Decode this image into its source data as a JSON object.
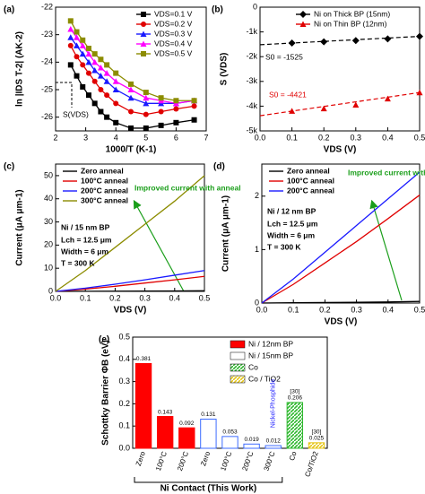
{
  "chart_data": [
    {
      "type": "line",
      "panel_label": "(a)",
      "xlabel": "1000/T (K-1)",
      "ylabel": "ln |IDS T-2| (AK-2)",
      "x": [
        2.5,
        2.7,
        2.9,
        3.1,
        3.3,
        3.5,
        3.7,
        4.0,
        4.5,
        5.0,
        5.5,
        6.0,
        6.6
      ],
      "series": [
        {
          "name": "VDS=0.1 V",
          "color": "#000000",
          "marker": "square",
          "values": [
            -24.1,
            -24.5,
            -24.9,
            -25.2,
            -25.5,
            -25.8,
            -26.0,
            -26.2,
            -26.4,
            -26.4,
            -26.3,
            -26.2,
            -26.1
          ]
        },
        {
          "name": "VDS=0.2 V",
          "color": "#e00000",
          "marker": "circle",
          "values": [
            -23.4,
            -23.8,
            -24.1,
            -24.4,
            -24.7,
            -25.0,
            -25.2,
            -25.5,
            -25.8,
            -25.9,
            -25.8,
            -25.7,
            -25.6
          ]
        },
        {
          "name": "VDS=0.3 V",
          "color": "#1a1aff",
          "marker": "triangle",
          "values": [
            -23.1,
            -23.4,
            -23.7,
            -24.0,
            -24.3,
            -24.5,
            -24.7,
            -25.0,
            -25.3,
            -25.5,
            -25.5,
            -25.5,
            -25.4
          ]
        },
        {
          "name": "VDS=0.4 V",
          "color": "#ff00ff",
          "marker": "triangle",
          "values": [
            -22.8,
            -23.1,
            -23.4,
            -23.7,
            -24.0,
            -24.2,
            -24.4,
            -24.7,
            -25.0,
            -25.3,
            -25.4,
            -25.5,
            -25.4
          ]
        },
        {
          "name": "VDS=0.5 V",
          "color": "#8c8c00",
          "marker": "square",
          "values": [
            -22.5,
            -22.9,
            -23.2,
            -23.5,
            -23.7,
            -23.9,
            -24.1,
            -24.4,
            -24.8,
            -25.1,
            -25.3,
            -25.4,
            -25.4
          ]
        }
      ],
      "xlim": [
        2,
        7
      ],
      "xticks": [
        2,
        3,
        4,
        5,
        6,
        7
      ],
      "ylim": [
        -26.5,
        -22
      ],
      "yticks": [
        -26,
        -25,
        -24,
        -23,
        -22
      ],
      "legend": "upper right",
      "annotations": [
        "S(VDS)"
      ]
    },
    {
      "type": "scatter",
      "panel_label": "(b)",
      "xlabel": "VDS (V)",
      "ylabel": "S (VDS)",
      "x": [
        0.1,
        0.2,
        0.3,
        0.4,
        0.5
      ],
      "series": [
        {
          "name": "Ni on Thick BP (15nm)",
          "color": "#000000",
          "marker": "diamond",
          "values": [
            -1450,
            -1400,
            -1350,
            -1280,
            -1180
          ]
        },
        {
          "name": "Ni on Thin BP (12nm)",
          "color": "#e00000",
          "marker": "triangle",
          "values": [
            -4200,
            -4100,
            -3950,
            -3700,
            -3450
          ]
        }
      ],
      "xlim": [
        0,
        0.5
      ],
      "xticks": [
        {
          "value": 0,
          "label": "0.0"
        },
        0.1,
        0.2,
        0.3,
        0.4,
        0.5
      ],
      "ylim": [
        -5000,
        0
      ],
      "yticks": [
        {
          "value": -5000,
          "label": "-5k"
        },
        {
          "value": -4000,
          "label": "-4k"
        },
        {
          "value": -3000,
          "label": "-3k"
        },
        {
          "value": -2000,
          "label": "-2k"
        },
        {
          "value": -1000,
          "label": "-1k"
        },
        0
      ],
      "legend": "upper right",
      "annotations": [
        "S0 = -1525",
        "S0 = -4421"
      ]
    },
    {
      "type": "line",
      "panel_label": "(c)",
      "xlabel": "VDS (V)",
      "ylabel": "Current (μA μm-1)",
      "x": [
        0,
        0.1,
        0.2,
        0.3,
        0.4,
        0.5
      ],
      "series": [
        {
          "name": "Zero anneal",
          "color": "#000000",
          "values": [
            0,
            0.05,
            0.1,
            0.15,
            0.2,
            0.3
          ]
        },
        {
          "name": "100°C anneal",
          "color": "#e00000",
          "values": [
            0,
            1.0,
            2.2,
            3.6,
            5.0,
            6.5
          ]
        },
        {
          "name": "200°C anneal",
          "color": "#1a1aff",
          "values": [
            0,
            1.4,
            3.1,
            5.0,
            7.0,
            9.0
          ]
        },
        {
          "name": "300°C anneal",
          "color": "#8c8c00",
          "values": [
            0,
            9,
            19,
            29,
            39,
            50
          ]
        }
      ],
      "xlim": [
        0,
        0.5
      ],
      "xticks": [
        {
          "value": 0,
          "label": "0.0"
        },
        0.1,
        0.2,
        0.3,
        0.4,
        0.5
      ],
      "ylim": [
        0,
        55
      ],
      "yticks": [
        0,
        10,
        20,
        30,
        40,
        50
      ],
      "legend": "upper left",
      "annotations": [
        "Improved current with anneal",
        "Ni / 15 nm BP",
        "Lch = 12.5 μm",
        "Width = 6 μm",
        "T = 300 K"
      ]
    },
    {
      "type": "line",
      "panel_label": "(d)",
      "xlabel": "VDS (V)",
      "ylabel": "Current (μA μm-1)",
      "x": [
        0,
        0.1,
        0.2,
        0.3,
        0.4,
        0.5
      ],
      "series": [
        {
          "name": "Zero anneal",
          "color": "#000000",
          "values": [
            0,
            0.005,
            0.01,
            0.015,
            0.02,
            0.03
          ]
        },
        {
          "name": "100°C anneal",
          "color": "#e00000",
          "values": [
            0,
            0.35,
            0.75,
            1.15,
            1.58,
            2.02
          ]
        },
        {
          "name": "200°C anneal",
          "color": "#1a1aff",
          "values": [
            0,
            0.45,
            0.95,
            1.45,
            1.95,
            2.45
          ]
        }
      ],
      "xlim": [
        0,
        0.5
      ],
      "xticks": [
        {
          "value": 0,
          "label": "0.0"
        },
        0.1,
        0.2,
        0.3,
        0.4,
        0.5
      ],
      "ylim": [
        0,
        2.6
      ],
      "yticks": [
        0,
        1,
        2
      ],
      "legend": "upper left",
      "annotations": [
        "Improved current with anneal",
        "Ni / 12 nm BP",
        "Lch = 12.5 μm",
        "Width = 6 μm",
        "T = 300 K"
      ]
    },
    {
      "type": "bar",
      "panel_label": "(e)",
      "ylabel": "Schottky Barrier ΦB (eV)",
      "categories": [
        "Zero",
        "100°C",
        "200°C",
        "Zero",
        "100°C",
        "200°C",
        "300°C",
        "Co",
        "Co/TiO2"
      ],
      "series": [
        {
          "name": "Ni / 12nm BP",
          "color": "#ff0000",
          "hatch": false,
          "values": [
            0.381,
            0.143,
            0.092,
            null,
            null,
            null,
            null,
            null,
            null
          ]
        },
        {
          "name": "Ni / 15nm BP",
          "color": "#3d6bff",
          "hatch": true,
          "values": [
            null,
            null,
            null,
            0.131,
            0.053,
            0.019,
            0.012,
            null,
            null
          ]
        },
        {
          "name": "Co",
          "color": "#2eb82e",
          "hatch": true,
          "values": [
            null,
            null,
            null,
            null,
            null,
            null,
            null,
            0.206,
            null
          ]
        },
        {
          "name": "Co / TiO2",
          "color": "#e6c619",
          "hatch": true,
          "values": [
            null,
            null,
            null,
            null,
            null,
            null,
            null,
            null,
            0.025
          ]
        }
      ],
      "ylim": [
        0,
        0.5
      ],
      "yticks": [
        {
          "value": 0,
          "label": "0.0"
        },
        0.1,
        0.2,
        0.3,
        0.4,
        0.5
      ],
      "legend": "upper right",
      "annotations": [
        "[30]",
        "[30]",
        "Nickel-Phosphide",
        "Ni Contact (This Work)"
      ]
    }
  ]
}
